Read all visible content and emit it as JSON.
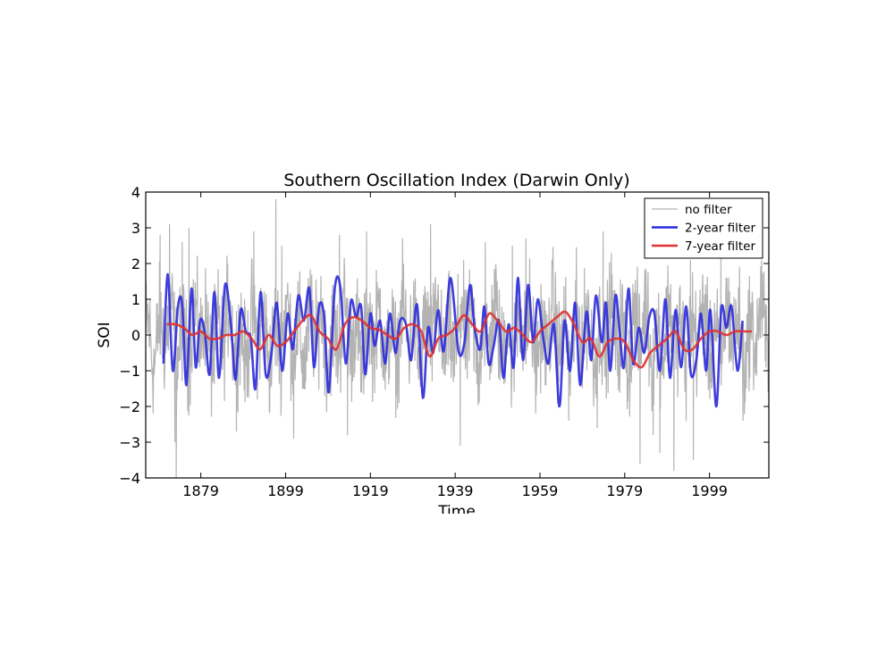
{
  "chart_data": {
    "type": "line",
    "title": "Southern Oscillation Index (Darwin Only)",
    "xlabel": "Time",
    "ylabel": "SOI",
    "xlim": [
      1866,
      2013
    ],
    "ylim": [
      -4,
      4
    ],
    "x_ticks": [
      1879,
      1899,
      1919,
      1939,
      1959,
      1979,
      1999
    ],
    "y_ticks": [
      -4,
      -3,
      -2,
      -1,
      0,
      1,
      2,
      3,
      4
    ],
    "grid": false,
    "legend_position": "top-right",
    "series": [
      {
        "name": "no filter",
        "color": "#b3b3b3",
        "style": "raw-monthly",
        "x_start": 1866,
        "x_end": 2013,
        "amplitude": 1.1,
        "spikes": [
          [
            1869.4,
            2.8
          ],
          [
            1871.6,
            3.1
          ],
          [
            1872.9,
            -3.0
          ],
          [
            1873.2,
            -4.0
          ],
          [
            1874.6,
            2.6
          ],
          [
            1876.2,
            3.0
          ],
          [
            1885.3,
            2.0
          ],
          [
            1887.4,
            -2.7
          ],
          [
            1891.5,
            2.9
          ],
          [
            1896.7,
            3.8
          ],
          [
            1898.1,
            2.5
          ],
          [
            1900.9,
            -2.9
          ],
          [
            1911.7,
            2.8
          ],
          [
            1913.6,
            -2.8
          ],
          [
            1918.1,
            2.9
          ],
          [
            1933.2,
            3.1
          ],
          [
            1940.2,
            -3.1
          ],
          [
            1946.1,
            2.6
          ],
          [
            1952.5,
            2.5
          ],
          [
            1955.7,
            2.7
          ],
          [
            1965.8,
            -2.4
          ],
          [
            1972.5,
            -2.6
          ],
          [
            1973.9,
            2.9
          ],
          [
            1982.6,
            -3.6
          ],
          [
            1985.7,
            -2.8
          ],
          [
            1987.3,
            -3.3
          ],
          [
            1990.6,
            -3.8
          ],
          [
            1995.2,
            -3.5
          ],
          [
            1994.5,
            2.1
          ],
          [
            2001.7,
            2.2
          ],
          [
            2011.3,
            2.1
          ],
          [
            2006.9,
            -2.4
          ]
        ]
      },
      {
        "name": "2-year filter",
        "color": "#2a2adb",
        "x": [
          1870.2,
          1871.2,
          1872.4,
          1873.6,
          1874.6,
          1875.6,
          1876.8,
          1877.8,
          1878.8,
          1879.9,
          1881.1,
          1882.2,
          1883.3,
          1884.7,
          1886.1,
          1887.2,
          1888.4,
          1889.6,
          1890.8,
          1891.9,
          1893.1,
          1894.3,
          1895.6,
          1896.9,
          1898.2,
          1899.5,
          1900.7,
          1902.0,
          1903.3,
          1904.6,
          1905.7,
          1906.9,
          1908.1,
          1909.2,
          1910.6,
          1911.9,
          1913.2,
          1914.4,
          1915.6,
          1916.8,
          1917.8,
          1919.0,
          1920.0,
          1921.3,
          1922.5,
          1923.6,
          1924.9,
          1926.0,
          1927.4,
          1928.6,
          1930.0,
          1931.4,
          1932.6,
          1933.8,
          1935.0,
          1936.3,
          1937.9,
          1939.8,
          1941.2,
          1942.5,
          1943.6,
          1944.9,
          1945.9,
          1946.9,
          1948.1,
          1949.3,
          1950.4,
          1951.6,
          1952.8,
          1953.8,
          1955.0,
          1956.2,
          1957.4,
          1958.5,
          1959.8,
          1961.0,
          1962.3,
          1963.6,
          1964.8,
          1966.1,
          1967.3,
          1968.5,
          1970.0,
          1971.1,
          1972.2,
          1973.6,
          1974.6,
          1975.6,
          1976.8,
          1977.8,
          1978.8,
          1979.9,
          1981.0,
          1982.3,
          1983.6,
          1984.8,
          1986.0,
          1987.3,
          1988.6,
          1989.7,
          1991.0,
          1992.3,
          1993.5,
          1994.6,
          1995.9,
          1997.0,
          1998.2,
          1999.2,
          2000.6,
          2001.8,
          2003.0,
          2004.2,
          2005.6,
          2006.8
        ],
        "y": [
          -0.8,
          1.7,
          -1.0,
          0.8,
          0.85,
          -1.4,
          1.3,
          -0.9,
          0.4,
          0.1,
          -1.1,
          1.2,
          -1.2,
          1.4,
          0.3,
          -1.25,
          0.7,
          0.1,
          -0.1,
          -1.5,
          1.2,
          -1.1,
          -0.6,
          0.9,
          -1.0,
          0.6,
          -0.4,
          1.1,
          0.4,
          1.3,
          -0.9,
          0.8,
          0.5,
          -1.6,
          1.3,
          1.35,
          -0.8,
          0.95,
          0.5,
          0.8,
          -1.1,
          0.6,
          -0.3,
          0.4,
          -0.8,
          0.6,
          -0.5,
          0.4,
          0.3,
          -0.7,
          0.85,
          -1.75,
          0.2,
          -0.5,
          0.7,
          -0.45,
          1.6,
          -0.45,
          -0.2,
          1.4,
          0.2,
          -0.4,
          0.8,
          -0.8,
          -0.3,
          0.4,
          -1.2,
          0.3,
          -0.9,
          1.6,
          -0.7,
          1.4,
          -0.2,
          1.0,
          -0.1,
          -0.8,
          0.3,
          -2.0,
          0.4,
          -1.0,
          0.9,
          -1.4,
          0.65,
          -0.7,
          1.1,
          -0.2,
          0.9,
          -1.0,
          1.1,
          0.1,
          -0.9,
          1.3,
          -0.8,
          0.2,
          -0.5,
          0.5,
          0.6,
          -1.0,
          1.0,
          -1.2,
          0.7,
          -0.9,
          0.8,
          -1.1,
          -0.7,
          0.6,
          -1.0,
          0.7,
          -2.0,
          0.75,
          0.2,
          0.8,
          -1.0,
          0.4
        ],
        "y_extra": []
      },
      {
        "name": "7-year filter",
        "color": "#e03030",
        "x": [
          1871,
          1873,
          1875,
          1877,
          1879,
          1881,
          1883,
          1885,
          1887,
          1889,
          1891,
          1893,
          1895,
          1897,
          1899,
          1901,
          1903,
          1905,
          1907,
          1909,
          1911,
          1913,
          1915,
          1917,
          1919,
          1921,
          1923,
          1925,
          1927,
          1929,
          1931,
          1933,
          1935,
          1937,
          1939,
          1941,
          1943,
          1945,
          1947,
          1949,
          1951,
          1953,
          1955,
          1957,
          1959,
          1961,
          1963,
          1965,
          1967,
          1969,
          1971,
          1973,
          1975,
          1977,
          1979,
          1981,
          1983,
          1985,
          1987,
          1989,
          1991,
          1993,
          1995,
          1997,
          1999,
          2001,
          2003,
          2005,
          2007,
          2009
        ],
        "y": [
          0.3,
          0.3,
          0.2,
          0.0,
          0.1,
          -0.1,
          -0.1,
          0.0,
          0.0,
          0.1,
          -0.1,
          -0.4,
          0.0,
          -0.3,
          -0.2,
          0.1,
          0.4,
          0.55,
          0.1,
          -0.1,
          -0.4,
          0.3,
          0.5,
          0.4,
          0.2,
          0.15,
          0.0,
          -0.1,
          0.2,
          0.3,
          0.1,
          -0.6,
          -0.1,
          0.0,
          0.2,
          0.55,
          0.3,
          0.1,
          0.6,
          0.4,
          0.1,
          0.2,
          0.0,
          -0.2,
          0.1,
          0.3,
          0.5,
          0.65,
          0.3,
          -0.2,
          -0.1,
          -0.6,
          -0.2,
          -0.1,
          -0.2,
          -0.7,
          -0.9,
          -0.5,
          -0.3,
          -0.1,
          0.1,
          -0.4,
          -0.4,
          -0.1,
          0.1,
          0.1,
          0.0,
          0.1,
          0.1,
          0.1
        ]
      }
    ]
  }
}
